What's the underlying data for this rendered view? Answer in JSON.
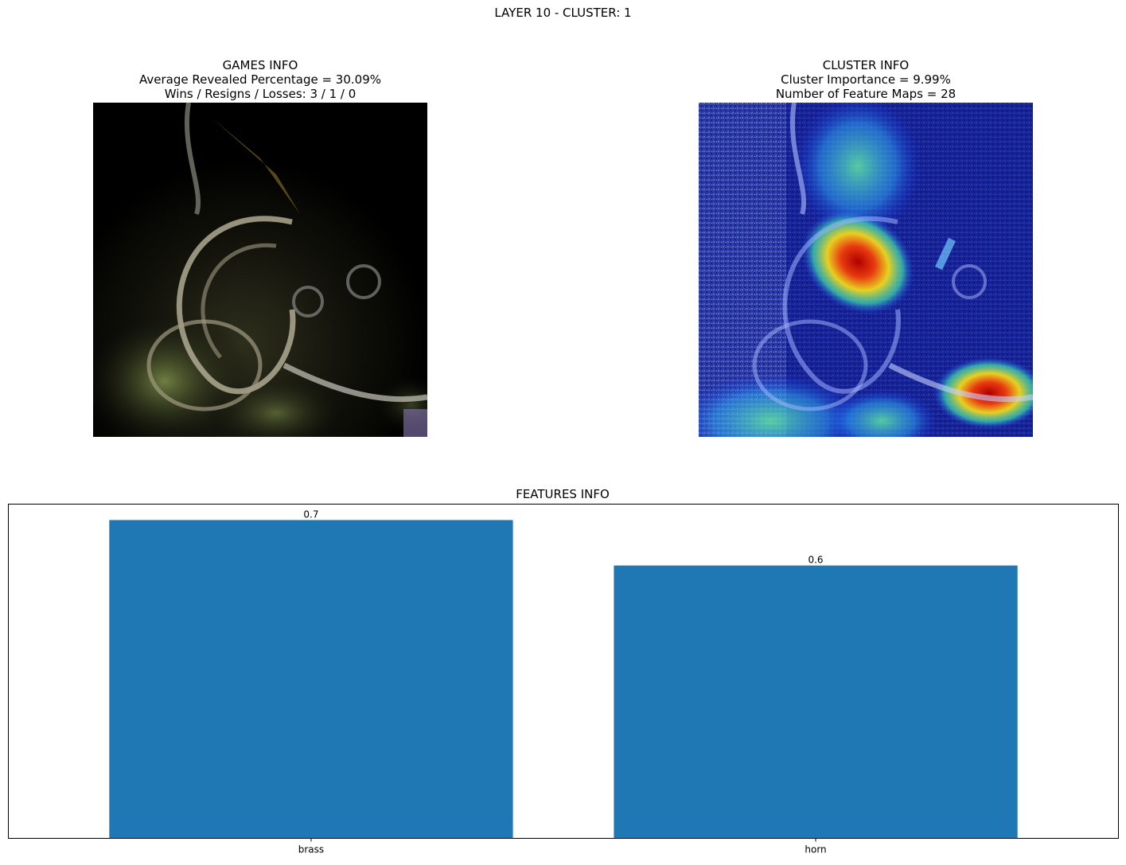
{
  "figure": {
    "suptitle": "LAYER 10 - CLUSTER: 1"
  },
  "games_panel": {
    "title": "GAMES INFO",
    "line1": "Average Revealed Percentage = 30.09%",
    "line2": "Wins / Resigns / Losses: 3 / 1 / 0"
  },
  "cluster_panel": {
    "title": "CLUSTER INFO",
    "line1": "Cluster Importance = 9.99%",
    "line2": "Number of Feature Maps = 28"
  },
  "chart_data": {
    "type": "bar",
    "title": "FEATURES INFO",
    "categories": [
      "brass",
      "horn"
    ],
    "values": [
      0.7,
      0.6
    ],
    "data_labels": [
      "0.7",
      "0.6"
    ],
    "ylim": [
      0,
      0.735
    ],
    "xlabel": "",
    "ylabel": "",
    "y_ticks_visible": false,
    "grid": false,
    "bar_color": "#1f77b4"
  }
}
